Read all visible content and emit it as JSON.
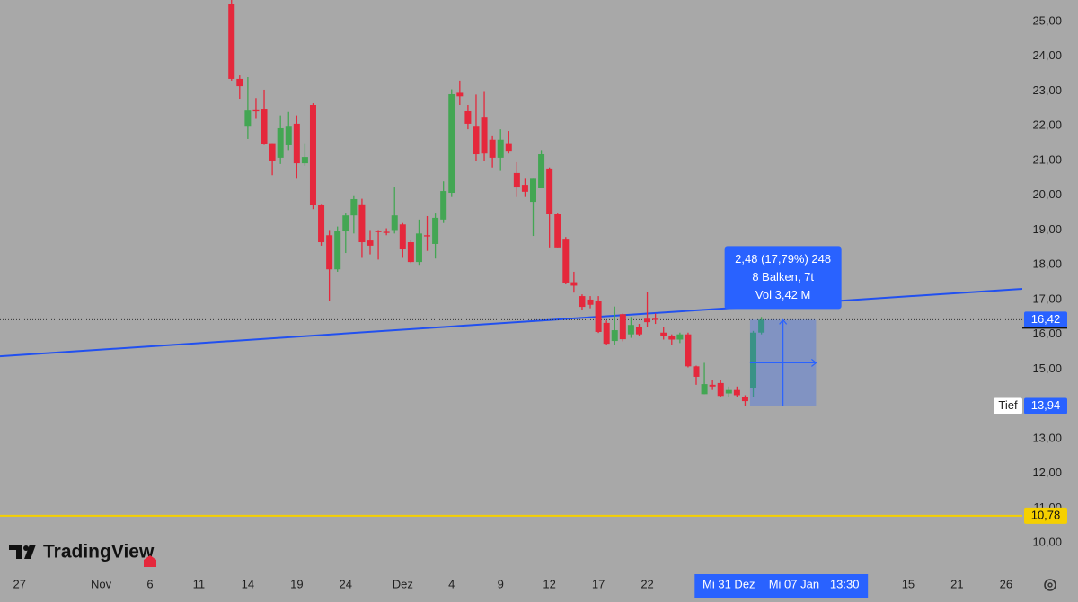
{
  "chart_data": {
    "type": "candlestick",
    "candles": {
      "x": [
        0,
        1,
        2,
        3,
        4,
        5,
        6,
        7,
        8,
        9,
        10,
        11,
        12,
        13,
        14,
        15,
        16,
        17,
        18,
        19,
        20,
        21,
        22,
        23,
        24,
        25,
        26,
        27,
        28,
        29,
        30,
        31,
        32,
        33,
        34,
        35,
        36,
        37,
        38,
        39,
        40,
        41,
        42,
        43,
        44,
        45,
        46,
        47,
        48,
        49,
        50,
        51,
        52,
        53,
        54,
        55,
        56,
        57,
        58,
        59,
        60,
        61,
        62,
        63,
        64,
        65
      ],
      "open": [
        25.5,
        23.35,
        22.0,
        22.45,
        22.47,
        21.5,
        21.08,
        21.44,
        22.06,
        20.92,
        22.6,
        19.71,
        18.85,
        17.87,
        18.96,
        19.42,
        19.74,
        18.7,
        18.98,
        18.95,
        19.0,
        19.16,
        18.65,
        18.08,
        18.85,
        18.6,
        19.3,
        20.07,
        22.95,
        22.42,
        22.0,
        22.26,
        21.6,
        21.08,
        21.5,
        20.64,
        20.3,
        19.81,
        20.2,
        20.77,
        19.47,
        18.75,
        17.5,
        17.1,
        17.0,
        16.97,
        16.33,
        15.81,
        16.58,
        16.0,
        16.2,
        16.45,
        16.45,
        16.05,
        15.95,
        15.85,
        16.0,
        15.08,
        14.28,
        14.55,
        14.6,
        14.3,
        14.4,
        14.2,
        14.45,
        16.05
      ],
      "high": [
        25.7,
        23.45,
        23.4,
        22.8,
        23.04,
        21.5,
        22.3,
        22.4,
        22.3,
        21.5,
        22.65,
        19.75,
        19.0,
        19.1,
        19.5,
        20.0,
        19.9,
        19.0,
        19.0,
        19.05,
        20.25,
        19.2,
        18.7,
        19.3,
        19.4,
        19.5,
        20.4,
        23.05,
        23.3,
        22.6,
        22.9,
        23.0,
        21.7,
        21.9,
        21.85,
        20.95,
        20.5,
        20.5,
        21.3,
        20.8,
        19.5,
        18.8,
        17.8,
        17.15,
        17.1,
        17.1,
        16.4,
        16.8,
        16.6,
        16.5,
        16.3,
        17.23,
        16.6,
        16.2,
        16.0,
        16.05,
        16.05,
        15.1,
        15.18,
        14.7,
        14.7,
        14.5,
        14.5,
        14.25,
        16.1,
        16.5
      ],
      "low": [
        23.3,
        22.78,
        21.62,
        22.2,
        21.45,
        20.58,
        20.9,
        21.3,
        20.5,
        20.85,
        19.6,
        18.55,
        16.97,
        17.8,
        18.34,
        18.9,
        18.2,
        18.3,
        18.15,
        18.85,
        18.9,
        18.2,
        18.05,
        18.0,
        18.4,
        18.18,
        19.2,
        19.95,
        22.6,
        21.9,
        21.0,
        21.0,
        20.8,
        20.7,
        21.2,
        19.95,
        19.95,
        18.83,
        20.2,
        18.5,
        18.5,
        17.45,
        17.2,
        16.7,
        16.75,
        16.04,
        15.7,
        15.7,
        15.8,
        15.9,
        15.95,
        16.2,
        16.3,
        15.85,
        15.7,
        15.75,
        15.05,
        14.55,
        14.28,
        14.4,
        14.2,
        14.2,
        14.2,
        13.94,
        14.2,
        16.0
      ],
      "close": [
        23.35,
        23.14,
        22.44,
        22.42,
        21.49,
        21.0,
        21.93,
        22.0,
        20.92,
        21.1,
        19.71,
        18.65,
        17.87,
        18.96,
        19.42,
        19.89,
        18.65,
        18.55,
        18.94,
        18.92,
        19.42,
        18.47,
        18.08,
        18.9,
        18.82,
        19.35,
        20.12,
        22.91,
        22.85,
        22.06,
        21.18,
        21.2,
        21.08,
        21.6,
        21.28,
        20.25,
        20.1,
        20.5,
        21.18,
        19.47,
        18.5,
        17.49,
        17.4,
        16.79,
        16.85,
        16.07,
        15.73,
        16.12,
        15.86,
        16.27,
        16.0,
        16.35,
        16.42,
        15.94,
        15.85,
        16.0,
        15.08,
        14.78,
        14.57,
        14.5,
        14.23,
        14.4,
        14.25,
        14.08,
        16.05,
        16.42
      ]
    },
    "colors": {
      "up": "#43a653",
      "down": "#e5283c"
    },
    "xlim": [
      -28.4,
      97
    ],
    "xticks": [
      {
        "value": -26,
        "label": "27"
      },
      {
        "value": -16,
        "label": "Nov"
      },
      {
        "value": -10,
        "label": "6"
      },
      {
        "value": -4,
        "label": "11"
      },
      {
        "value": 2,
        "label": "14"
      },
      {
        "value": 8,
        "label": "19"
      },
      {
        "value": 14,
        "label": "24"
      },
      {
        "value": 21,
        "label": "Dez"
      },
      {
        "value": 27,
        "label": "4"
      },
      {
        "value": 33,
        "label": "9"
      },
      {
        "value": 39,
        "label": "12"
      },
      {
        "value": 45,
        "label": "17"
      },
      {
        "value": 51,
        "label": "22"
      },
      {
        "value": 83,
        "label": "15"
      },
      {
        "value": 89,
        "label": "21"
      },
      {
        "value": 95,
        "label": "26"
      }
    ],
    "selection_xticks": [
      {
        "value": 61,
        "label": "Mi 31 Dez"
      },
      {
        "value": 69,
        "label": "Mi 07 Jan"
      },
      {
        "value": 75.2,
        "label": "13:30"
      }
    ],
    "ylim": [
      9.1,
      25.62
    ],
    "yticks": [
      {
        "value": 10,
        "label": "10,00"
      },
      {
        "value": 11,
        "label": "11,00"
      },
      {
        "value": 12,
        "label": "12,00"
      },
      {
        "value": 13,
        "label": "13,00"
      },
      {
        "value": 14,
        "label": "14,00"
      },
      {
        "value": 15,
        "label": "15,00"
      },
      {
        "value": 16,
        "label": "16,00"
      },
      {
        "value": 17,
        "label": "17,00"
      },
      {
        "value": 18,
        "label": "18,00"
      },
      {
        "value": 19,
        "label": "19,00"
      },
      {
        "value": 20,
        "label": "20,00"
      },
      {
        "value": 21,
        "label": "21,00"
      },
      {
        "value": 22,
        "label": "22,00"
      },
      {
        "value": 23,
        "label": "23,00"
      },
      {
        "value": 24,
        "label": "24,00"
      },
      {
        "value": 25,
        "label": "25,00"
      }
    ],
    "last_price": {
      "value": 16.42,
      "label": "16,42",
      "color": "#2962ff"
    },
    "low_marker": {
      "name": "Tief",
      "value": 13.94,
      "label": "13,94",
      "color": "#2962ff"
    },
    "hline": {
      "value": 10.78,
      "label": "10,78",
      "color": "#f5d000"
    },
    "trendline": {
      "x": [
        -28.4,
        97
      ],
      "y": [
        15.37,
        17.31
      ],
      "color": "#2150f0"
    },
    "measure": {
      "x": [
        63.6,
        71.7
      ],
      "y": [
        13.94,
        16.42
      ],
      "lines": [
        "2,48 (17,79%) 248",
        "8 Balken, 7t",
        "Vol 3,42 M"
      ],
      "color": "#2962ff"
    }
  },
  "brand": "TradingView"
}
